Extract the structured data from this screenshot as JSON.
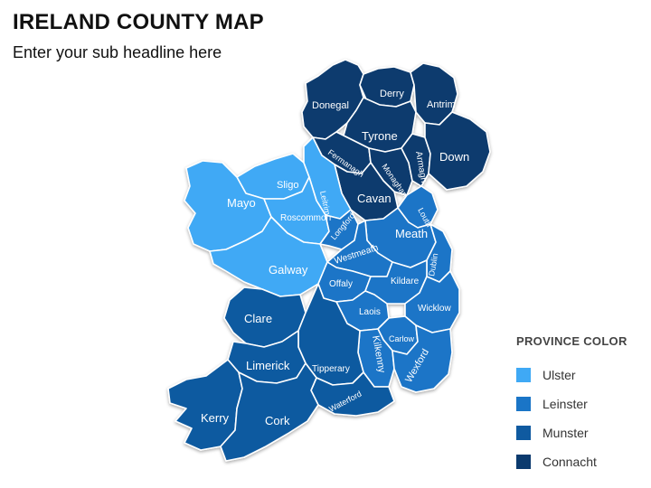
{
  "title": "IRELAND COUNTY MAP",
  "subtitle": "Enter your sub headline here",
  "colors": {
    "ulster": "#3fa9f5",
    "leinster": "#1a75c7",
    "munster": "#0f5aa0",
    "connacht": "#0b3a6e"
  },
  "legend": {
    "title": "PROVINCE COLOR",
    "items": [
      {
        "label": "Ulster",
        "color": "#3fa9f5"
      },
      {
        "label": "Leinster",
        "color": "#1a75c7"
      },
      {
        "label": "Munster",
        "color": "#0f5aa0"
      },
      {
        "label": "Connacht",
        "color": "#0b3a6e"
      }
    ]
  },
  "counties": {
    "donegal": "Donegal",
    "derry": "Derry",
    "antrim": "Antrim",
    "tyrone": "Tyrone",
    "fermanagh": "Fermanagh",
    "monaghan": "Monaghan",
    "armagh": "Armagh",
    "down": "Down",
    "cavan": "Cavan",
    "sligo": "Sligo",
    "leitrim": "Leitrim",
    "mayo": "Mayo",
    "roscommon": "Roscommon",
    "longford": "Longford",
    "louth": "Louth",
    "meath": "Meath",
    "westmeath": "Westmeath",
    "galway": "Galway",
    "dublin": "Dublin",
    "offaly": "Offaly",
    "kildare": "Kildare",
    "laois": "Laois",
    "wicklow": "Wicklow",
    "clare": "Clare",
    "carlow": "Carlow",
    "kilkenny": "Kilkenny",
    "wexford": "Wexford",
    "limerick": "Limerick",
    "tipperary": "Tipperary",
    "waterford": "Waterford",
    "kerry": "Kerry",
    "cork": "Cork"
  }
}
